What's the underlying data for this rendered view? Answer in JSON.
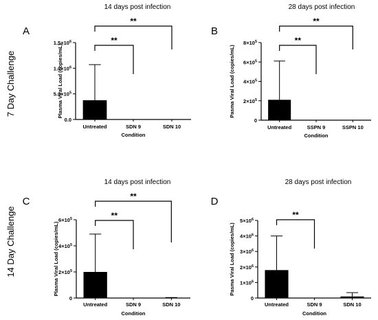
{
  "row_labels": [
    "7 Day Challenge",
    "14 Day Challenge"
  ],
  "chart_data": [
    {
      "type": "bar",
      "panel": "A",
      "title": "14 days post infection",
      "xlabel": "Condition",
      "ylabel": "Plasma Viral Load (copies/mL)",
      "categories": [
        "Untreated",
        "SDN 9",
        "SDN 10"
      ],
      "values": [
        375000,
        0,
        0
      ],
      "error_upper": [
        1070000,
        0,
        0
      ],
      "ylim": [
        0,
        1500000
      ],
      "yticks": [
        {
          "value": 0,
          "base": "0.0",
          "exp": ""
        },
        {
          "value": 500000,
          "base": "5.0×10",
          "exp": "5"
        },
        {
          "value": 1000000,
          "base": "1.0×10",
          "exp": "6"
        },
        {
          "value": 1500000,
          "base": "1.5×10",
          "exp": "6"
        }
      ],
      "significance": [
        {
          "from": 0,
          "to": 1,
          "label": "**"
        },
        {
          "from": 0,
          "to": 2,
          "label": "**"
        }
      ]
    },
    {
      "type": "bar",
      "panel": "B",
      "title": "28 days post infection",
      "xlabel": "Condition",
      "ylabel": "Pasma Viral Load (copies/mL)",
      "categories": [
        "Untreated",
        "SSPN 9",
        "SSPN 10"
      ],
      "values": [
        210000,
        0,
        0
      ],
      "error_upper": [
        610000,
        0,
        0
      ],
      "ylim": [
        0,
        800000
      ],
      "yticks": [
        {
          "value": 0,
          "base": "0",
          "exp": ""
        },
        {
          "value": 200000,
          "base": "2×10",
          "exp": "5"
        },
        {
          "value": 400000,
          "base": "4×10",
          "exp": "5"
        },
        {
          "value": 600000,
          "base": "6×10",
          "exp": "5"
        },
        {
          "value": 800000,
          "base": "8×10",
          "exp": "5"
        }
      ],
      "significance": [
        {
          "from": 0,
          "to": 1,
          "label": "**"
        },
        {
          "from": 0,
          "to": 2,
          "label": "**"
        }
      ]
    },
    {
      "type": "bar",
      "panel": "C",
      "title": "14 days post infection",
      "xlabel": "Condition",
      "ylabel": "Plasma Viral Load (copies/mL)",
      "categories": [
        "Untreated",
        "SDN 9",
        "SDN 10"
      ],
      "values": [
        200000,
        0,
        2000
      ],
      "error_upper": [
        490000,
        0,
        4000
      ],
      "ylim": [
        0,
        600000
      ],
      "yticks": [
        {
          "value": 0,
          "base": "0",
          "exp": ""
        },
        {
          "value": 200000,
          "base": "2×10",
          "exp": "5"
        },
        {
          "value": 400000,
          "base": "4×10",
          "exp": "5"
        },
        {
          "value": 600000,
          "base": "6×10",
          "exp": "5"
        }
      ],
      "significance": [
        {
          "from": 0,
          "to": 1,
          "label": "**"
        },
        {
          "from": 0,
          "to": 2,
          "label": "**"
        }
      ]
    },
    {
      "type": "bar",
      "panel": "D",
      "title": "28 days post infection",
      "xlabel": "Condition",
      "ylabel": "Pasma Viral Load (copies/mL)",
      "categories": [
        "Untreated",
        "SDN 9",
        "SDN 10"
      ],
      "values": [
        1800000,
        0,
        100000
      ],
      "error_upper": [
        4000000,
        0,
        350000
      ],
      "ylim": [
        0,
        5000000
      ],
      "yticks": [
        {
          "value": 0,
          "base": "0",
          "exp": ""
        },
        {
          "value": 1000000,
          "base": "1×10",
          "exp": "6"
        },
        {
          "value": 2000000,
          "base": "2×10",
          "exp": "6"
        },
        {
          "value": 3000000,
          "base": "3×10",
          "exp": "6"
        },
        {
          "value": 4000000,
          "base": "4×10",
          "exp": "6"
        },
        {
          "value": 5000000,
          "base": "5×10",
          "exp": "6"
        }
      ],
      "significance": [
        {
          "from": 0,
          "to": 1,
          "label": "**"
        }
      ]
    }
  ]
}
